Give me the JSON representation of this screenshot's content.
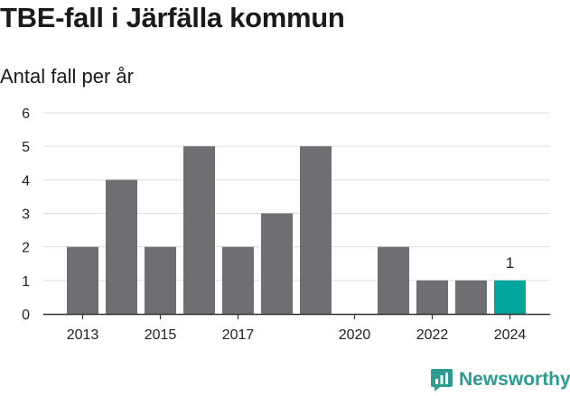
{
  "title": "TBE-fall i Järfälla kommun",
  "subtitle": "Antal fall per år",
  "brand": {
    "name": "Newsworthy"
  },
  "colors": {
    "bar": "#6f6e73",
    "highlight": "#00a69c",
    "grid": "#dddddd",
    "axis": "#333333",
    "brand": "#2a9d8f"
  },
  "chart_data": {
    "type": "bar",
    "categories": [
      "2013",
      "2014",
      "2015",
      "2016",
      "2017",
      "2018",
      "2019",
      "2020",
      "2021",
      "2022",
      "2023",
      "2024"
    ],
    "values": [
      2,
      4,
      2,
      5,
      2,
      3,
      5,
      0,
      2,
      1,
      1,
      1
    ],
    "x_tick_labels": [
      "2013",
      "2015",
      "2017",
      "2020",
      "2022",
      "2024"
    ],
    "y_ticks": [
      0,
      1,
      2,
      3,
      4,
      5,
      6
    ],
    "ylim": [
      0,
      6
    ],
    "highlight_category": "2024",
    "data_labels": [
      {
        "category": "2024",
        "text": "1"
      }
    ],
    "grid": true,
    "legend": "none"
  }
}
